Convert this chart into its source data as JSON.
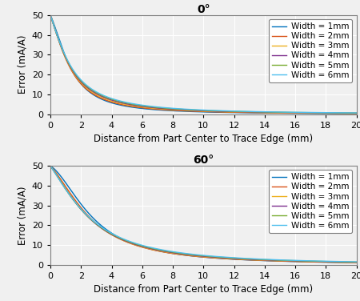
{
  "title_top": "0°",
  "title_bottom": "60°",
  "xlabel": "Distance from Part Center to Trace Edge (mm)",
  "ylabel": "Error (mA/A)",
  "xlim": [
    0,
    20
  ],
  "ylim": [
    0,
    50
  ],
  "xticks": [
    0,
    2,
    4,
    6,
    8,
    10,
    12,
    14,
    16,
    18,
    20
  ],
  "yticks": [
    0,
    10,
    20,
    30,
    40,
    50
  ],
  "widths_mm": [
    1,
    2,
    3,
    4,
    5,
    6
  ],
  "line_colors": [
    "#0072BD",
    "#D95319",
    "#EDB120",
    "#7E2F8E",
    "#77AC30",
    "#4DBEEE"
  ],
  "legend_labels": [
    "Width = 1mm",
    "Width = 2mm",
    "Width = 3mm",
    "Width = 4mm",
    "Width = 5mm",
    "Width = 6mm"
  ],
  "background_color": "#f0f0f0",
  "grid_color": "#ffffff",
  "title_fontsize": 10,
  "label_fontsize": 8.5,
  "tick_fontsize": 8,
  "legend_fontsize": 7.5
}
